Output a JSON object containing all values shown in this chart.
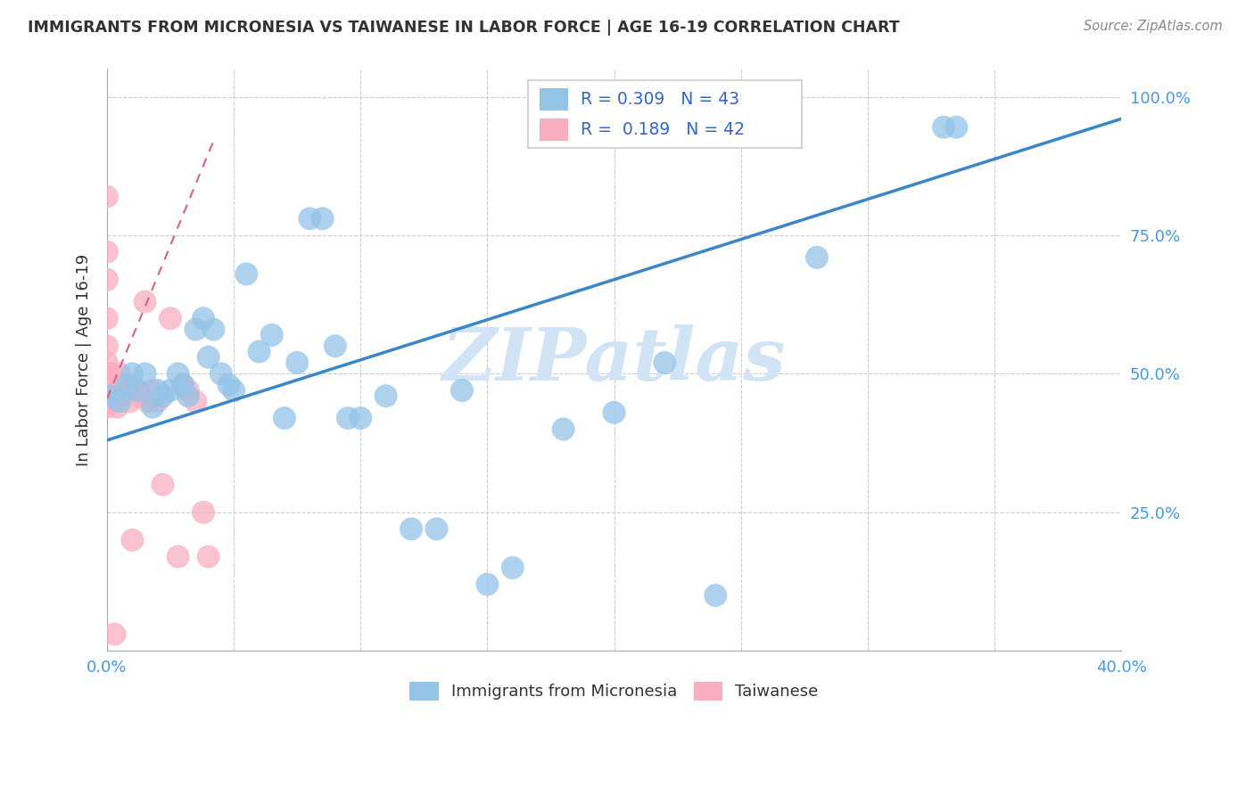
{
  "title": "IMMIGRANTS FROM MICRONESIA VS TAIWANESE IN LABOR FORCE | AGE 16-19 CORRELATION CHART",
  "source": "Source: ZipAtlas.com",
  "ylabel": "In Labor Force | Age 16-19",
  "xmin": 0.0,
  "xmax": 0.4,
  "ymin": 0.0,
  "ymax": 1.05,
  "xticks": [
    0.0,
    0.05,
    0.1,
    0.15,
    0.2,
    0.25,
    0.3,
    0.35,
    0.4
  ],
  "ytick_positions": [
    0.0,
    0.25,
    0.5,
    0.75,
    1.0
  ],
  "blue_R": 0.309,
  "blue_N": 43,
  "pink_R": 0.189,
  "pink_N": 42,
  "blue_color": "#93c4e8",
  "pink_color": "#f9aec0",
  "blue_line_color": "#3a86c8",
  "pink_line_color": "#d96080",
  "watermark_color": "#d0e4f5",
  "blue_scatter_x": [
    0.002,
    0.005,
    0.008,
    0.01,
    0.012,
    0.015,
    0.018,
    0.02,
    0.022,
    0.025,
    0.028,
    0.03,
    0.032,
    0.035,
    0.038,
    0.04,
    0.042,
    0.045,
    0.048,
    0.05,
    0.055,
    0.06,
    0.065,
    0.07,
    0.075,
    0.08,
    0.085,
    0.09,
    0.095,
    0.1,
    0.11,
    0.12,
    0.13,
    0.14,
    0.15,
    0.16,
    0.18,
    0.2,
    0.22,
    0.24,
    0.28,
    0.33,
    0.335
  ],
  "blue_scatter_y": [
    0.46,
    0.45,
    0.48,
    0.5,
    0.47,
    0.5,
    0.44,
    0.47,
    0.46,
    0.47,
    0.5,
    0.48,
    0.46,
    0.58,
    0.6,
    0.53,
    0.58,
    0.5,
    0.48,
    0.47,
    0.68,
    0.54,
    0.57,
    0.42,
    0.52,
    0.78,
    0.78,
    0.55,
    0.42,
    0.42,
    0.46,
    0.22,
    0.22,
    0.47,
    0.12,
    0.15,
    0.4,
    0.43,
    0.52,
    0.1,
    0.71,
    0.945,
    0.945
  ],
  "pink_scatter_x": [
    0.0,
    0.0,
    0.0,
    0.0,
    0.0,
    0.0,
    0.0,
    0.0,
    0.0,
    0.0,
    0.0,
    0.0,
    0.001,
    0.001,
    0.002,
    0.002,
    0.003,
    0.003,
    0.004,
    0.004,
    0.005,
    0.005,
    0.006,
    0.007,
    0.008,
    0.009,
    0.01,
    0.012,
    0.013,
    0.015,
    0.016,
    0.018,
    0.02,
    0.022,
    0.025,
    0.028,
    0.03,
    0.032,
    0.035,
    0.038,
    0.04,
    0.003
  ],
  "pink_scatter_y": [
    0.82,
    0.72,
    0.67,
    0.6,
    0.55,
    0.52,
    0.5,
    0.48,
    0.47,
    0.46,
    0.45,
    0.44,
    0.48,
    0.45,
    0.5,
    0.47,
    0.48,
    0.45,
    0.47,
    0.44,
    0.5,
    0.47,
    0.46,
    0.48,
    0.48,
    0.45,
    0.2,
    0.47,
    0.46,
    0.63,
    0.45,
    0.47,
    0.45,
    0.3,
    0.6,
    0.17,
    0.48,
    0.47,
    0.45,
    0.25,
    0.17,
    0.03
  ],
  "blue_line_x0": 0.0,
  "blue_line_x1": 0.4,
  "blue_line_y0": 0.38,
  "blue_line_y1": 0.96,
  "pink_line_x0": 0.0,
  "pink_line_x1": 0.042,
  "pink_line_y0": 0.455,
  "pink_line_y1": 0.92
}
